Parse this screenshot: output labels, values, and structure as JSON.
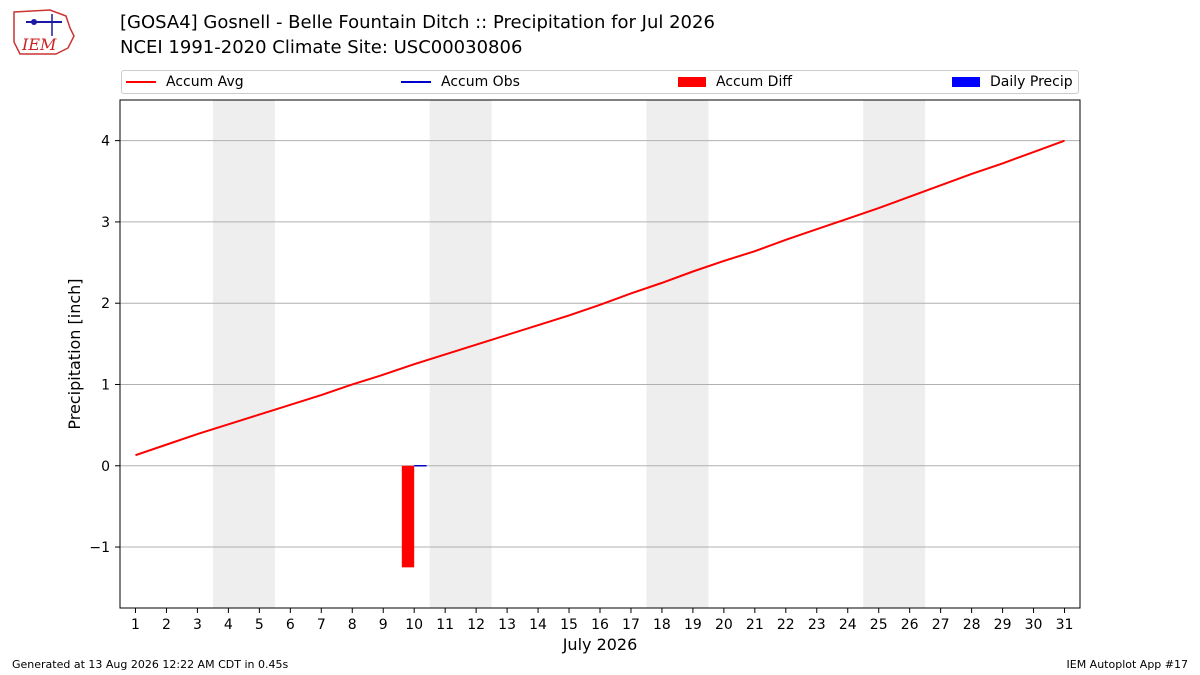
{
  "header": {
    "title_line1": "[GOSA4] Gosnell - Belle Fountain Ditch :: Precipitation for Jul 2026",
    "title_line2": "NCEI 1991-2020 Climate Site: USC00030806",
    "logo_text": "IEM"
  },
  "legend": {
    "accum_avg": "Accum Avg",
    "accum_obs": "Accum Obs",
    "accum_diff": "Accum Diff",
    "daily_precip": "Daily Precip"
  },
  "colors": {
    "accum_avg": "#ff0000",
    "accum_obs": "#0000cc",
    "accum_diff": "#ff0000",
    "daily_precip": "#0000ff",
    "weekend_band": "#eeeeee",
    "grid": "#b0b0b0"
  },
  "footer": {
    "generated": "Generated at 13 Aug 2026 12:22 AM CDT in 0.45s",
    "app": "IEM Autoplot App #17"
  },
  "chart_data": {
    "type": "line",
    "xlabel": "July 2026",
    "ylabel": "Precipitation [inch]",
    "x": [
      1,
      2,
      3,
      4,
      5,
      6,
      7,
      8,
      9,
      10,
      11,
      12,
      13,
      14,
      15,
      16,
      17,
      18,
      19,
      20,
      21,
      22,
      23,
      24,
      25,
      26,
      27,
      28,
      29,
      30,
      31
    ],
    "xlim": [
      0.5,
      31.5
    ],
    "ylim": [
      -1.75,
      4.5
    ],
    "yticks": [
      -1,
      0,
      1,
      2,
      3,
      4
    ],
    "ytick_labels": [
      "−1",
      "0",
      "1",
      "2",
      "3",
      "4"
    ],
    "grid": "horizontal",
    "legend_position": "top",
    "weekend_bands": [
      [
        3.5,
        5.5
      ],
      [
        10.5,
        12.5
      ],
      [
        17.5,
        19.5
      ],
      [
        24.5,
        26.5
      ]
    ],
    "series": [
      {
        "name": "Accum Avg",
        "type": "line",
        "values": [
          0.13,
          0.26,
          0.39,
          0.51,
          0.63,
          0.75,
          0.87,
          1.0,
          1.12,
          1.25,
          1.37,
          1.49,
          1.61,
          1.73,
          1.85,
          1.98,
          2.12,
          2.25,
          2.39,
          2.52,
          2.64,
          2.78,
          2.91,
          3.04,
          3.17,
          3.31,
          3.45,
          3.59,
          3.72,
          3.86,
          4.0
        ]
      },
      {
        "name": "Accum Obs",
        "type": "line",
        "x": [
          10,
          10.4
        ],
        "values": [
          0.0,
          0.0
        ]
      },
      {
        "name": "Accum Diff",
        "type": "bar",
        "x": [
          10
        ],
        "values": [
          -1.25
        ]
      },
      {
        "name": "Daily Precip",
        "type": "bar",
        "x": [],
        "values": []
      }
    ]
  }
}
